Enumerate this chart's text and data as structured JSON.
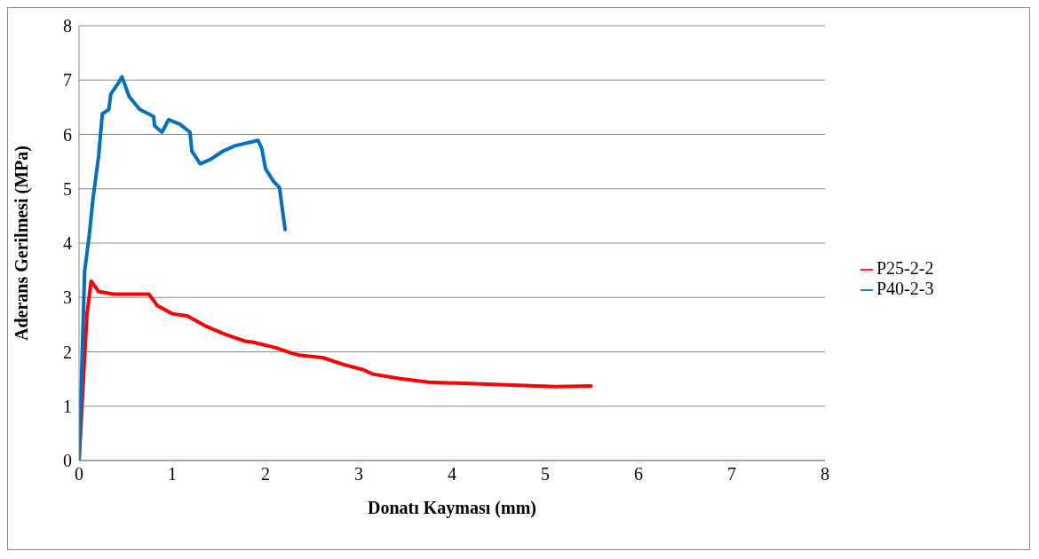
{
  "chart_data": {
    "type": "line",
    "xlabel": "Donatı Kayması (mm)",
    "ylabel": "Aderans Gerilmesi (MPa)",
    "xlim": [
      0,
      8
    ],
    "xticks": [
      0,
      1,
      2,
      3,
      4,
      5,
      6,
      7,
      8
    ],
    "ylim": [
      0,
      8
    ],
    "yticks": [
      0,
      1,
      2,
      3,
      4,
      5,
      6,
      7,
      8
    ],
    "grid": "y",
    "legend": "right",
    "marker": "none",
    "series": [
      {
        "name": "P25-2-2",
        "color": "#ff0000",
        "x": [
          0,
          0.085,
          0.13,
          0.21,
          0.37,
          0.75,
          0.84,
          1.0,
          1.16,
          1.35,
          1.54,
          1.79,
          1.86,
          2.1,
          2.29,
          2.36,
          2.62,
          2.83,
          3.05,
          3.15,
          3.43,
          3.75,
          4.32,
          5.11,
          5.49
        ],
        "values": [
          0,
          2.69,
          3.3,
          3.11,
          3.06,
          3.06,
          2.85,
          2.7,
          2.66,
          2.48,
          2.34,
          2.19,
          2.18,
          2.08,
          1.97,
          1.94,
          1.89,
          1.77,
          1.67,
          1.59,
          1.51,
          1.44,
          1.41,
          1.36,
          1.37
        ]
      },
      {
        "name": "P40-2-3",
        "color": "#0070c0",
        "x": [
          0,
          0.06,
          0.11,
          0.15,
          0.21,
          0.25,
          0.32,
          0.34,
          0.42,
          0.46,
          0.54,
          0.65,
          0.8,
          0.81,
          0.89,
          0.96,
          1.08,
          1.19,
          1.21,
          1.3,
          1.41,
          1.54,
          1.67,
          1.92,
          1.96,
          2.0,
          2.08,
          2.15,
          2.21
        ],
        "values": [
          0,
          3.48,
          4.15,
          4.82,
          5.6,
          6.38,
          6.46,
          6.74,
          6.94,
          7.06,
          6.69,
          6.46,
          6.33,
          6.16,
          6.04,
          6.27,
          6.19,
          6.04,
          5.69,
          5.46,
          5.54,
          5.69,
          5.79,
          5.89,
          5.74,
          5.37,
          5.15,
          5.02,
          4.25
        ]
      }
    ]
  }
}
